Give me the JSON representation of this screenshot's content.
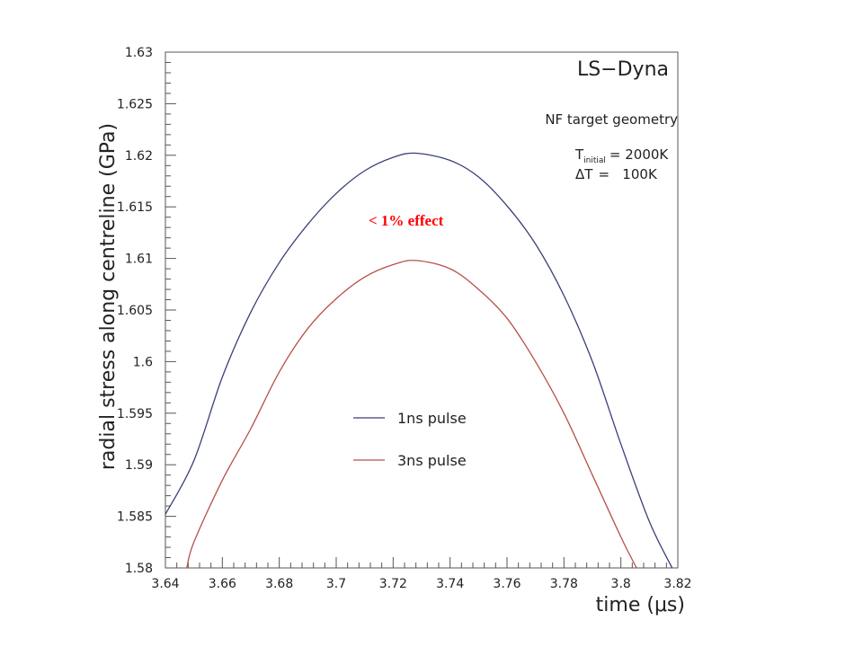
{
  "chart_data": {
    "type": "line",
    "title": "",
    "xlabel": "time (",
    "xlabel_unit": "μs",
    "xlabel_close": ")",
    "ylabel": "radial stress along centreline (GPa)",
    "xlim": [
      3.64,
      3.82
    ],
    "ylim": [
      1.58,
      1.63
    ],
    "x_ticks": [
      3.64,
      3.66,
      3.68,
      3.7,
      3.72,
      3.74,
      3.76,
      3.78,
      3.8,
      3.82
    ],
    "x_tick_labels": [
      "3.64",
      "3.66",
      "3.68",
      "3.7",
      "3.72",
      "3.74",
      "3.76",
      "3.78",
      "3.8",
      "3.82"
    ],
    "y_ticks": [
      1.58,
      1.585,
      1.59,
      1.595,
      1.6,
      1.605,
      1.61,
      1.615,
      1.62,
      1.625,
      1.63
    ],
    "y_tick_labels": [
      "1.58",
      "1.585",
      "1.59",
      "1.595",
      "1.6",
      "1.605",
      "1.61",
      "1.615",
      "1.62",
      "1.625",
      "1.63"
    ],
    "grid": false,
    "legend_position": "center-right",
    "series": [
      {
        "name": "1ns pulse",
        "color": "#3a3f7a",
        "x": [
          3.64,
          3.65,
          3.66,
          3.67,
          3.68,
          3.69,
          3.7,
          3.71,
          3.72,
          3.728,
          3.74,
          3.75,
          3.76,
          3.77,
          3.78,
          3.79,
          3.8,
          3.81,
          3.818
        ],
        "y": [
          1.5852,
          1.5904,
          1.5985,
          1.6048,
          1.6096,
          1.6133,
          1.6163,
          1.6185,
          1.6198,
          1.6202,
          1.6195,
          1.6179,
          1.6151,
          1.6114,
          1.6064,
          1.6,
          1.592,
          1.5845,
          1.58
        ]
      },
      {
        "name": "3ns pulse",
        "color": "#b5504a",
        "x": [
          3.6475,
          3.65,
          3.66,
          3.67,
          3.68,
          3.69,
          3.7,
          3.71,
          3.72,
          3.728,
          3.74,
          3.75,
          3.76,
          3.77,
          3.78,
          3.79,
          3.8,
          3.8055
        ],
        "y": [
          1.58,
          1.5825,
          1.5885,
          1.5935,
          1.599,
          1.6032,
          1.6061,
          1.6082,
          1.6094,
          1.6098,
          1.609,
          1.607,
          1.6042,
          1.6,
          1.595,
          1.589,
          1.583,
          1.58
        ]
      }
    ],
    "info": {
      "brand": "LS−Dyna",
      "geometry": "NF target geometry",
      "t_symbol": "T",
      "t_subscript": "initial",
      "t_value": "= 2000K",
      "dt_symbol": "ΔT",
      "dt_value": "=   100K"
    },
    "annotation": {
      "text": "< 1% effect",
      "color": "#ff0000"
    }
  }
}
